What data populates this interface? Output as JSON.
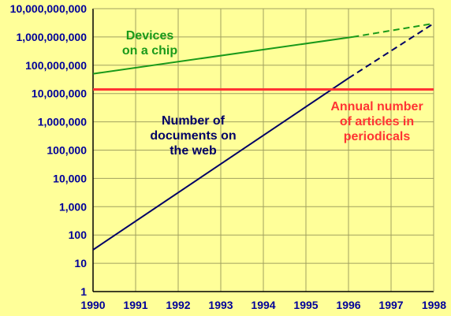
{
  "chart_data": {
    "type": "line",
    "title": "",
    "xlabel": "",
    "ylabel": "",
    "y_scale": "log",
    "ylim": [
      1,
      10000000000
    ],
    "xlim": [
      1990,
      1998
    ],
    "grid": true,
    "x_ticks": [
      "1990",
      "1991",
      "1992",
      "1993",
      "1994",
      "1995",
      "1996",
      "1997",
      "1998"
    ],
    "y_ticks": [
      "1",
      "10",
      "100",
      "1,000",
      "10,000",
      "100,000",
      "1,000,000",
      "10,000,000",
      "100,000,000",
      "1,000,000,000",
      "10,000,000,000"
    ],
    "series": [
      {
        "name": "Devices on a chip",
        "color": "#1a9a1a",
        "segments": [
          {
            "style": "solid",
            "x": [
              1990,
              1996.1
            ],
            "y": [
              50000000,
              1000000000
            ]
          },
          {
            "style": "dashed",
            "x": [
              1996.1,
              1998
            ],
            "y": [
              1000000000,
              3000000000
            ]
          }
        ]
      },
      {
        "name": "Number of documents on the web",
        "color": "#000066",
        "segments": [
          {
            "style": "solid",
            "x": [
              1990,
              1996
            ],
            "y": [
              30,
              35000000
            ]
          },
          {
            "style": "dashed",
            "x": [
              1996,
              1998
            ],
            "y": [
              35000000,
              3000000000
            ]
          }
        ]
      },
      {
        "name": "Annual number of articles in periodicals",
        "color": "#ff3333",
        "segments": [
          {
            "style": "solid",
            "x": [
              1990,
              1998
            ],
            "y": [
              14000000,
              14000000
            ]
          }
        ]
      }
    ],
    "annotations": [
      {
        "lines": [
          "Devices",
          "on a chip"
        ],
        "color": "#1a9a1a"
      },
      {
        "lines": [
          "Number of",
          "documents on",
          "the web"
        ],
        "color": "#000066"
      },
      {
        "lines": [
          "Annual number",
          "of articles in",
          "periodicals"
        ],
        "color": "#ff3333"
      }
    ],
    "colors": {
      "background": "#ffff99",
      "grid": "#a0a060",
      "axis_text": "#000099",
      "axis_line": "#000000"
    }
  }
}
